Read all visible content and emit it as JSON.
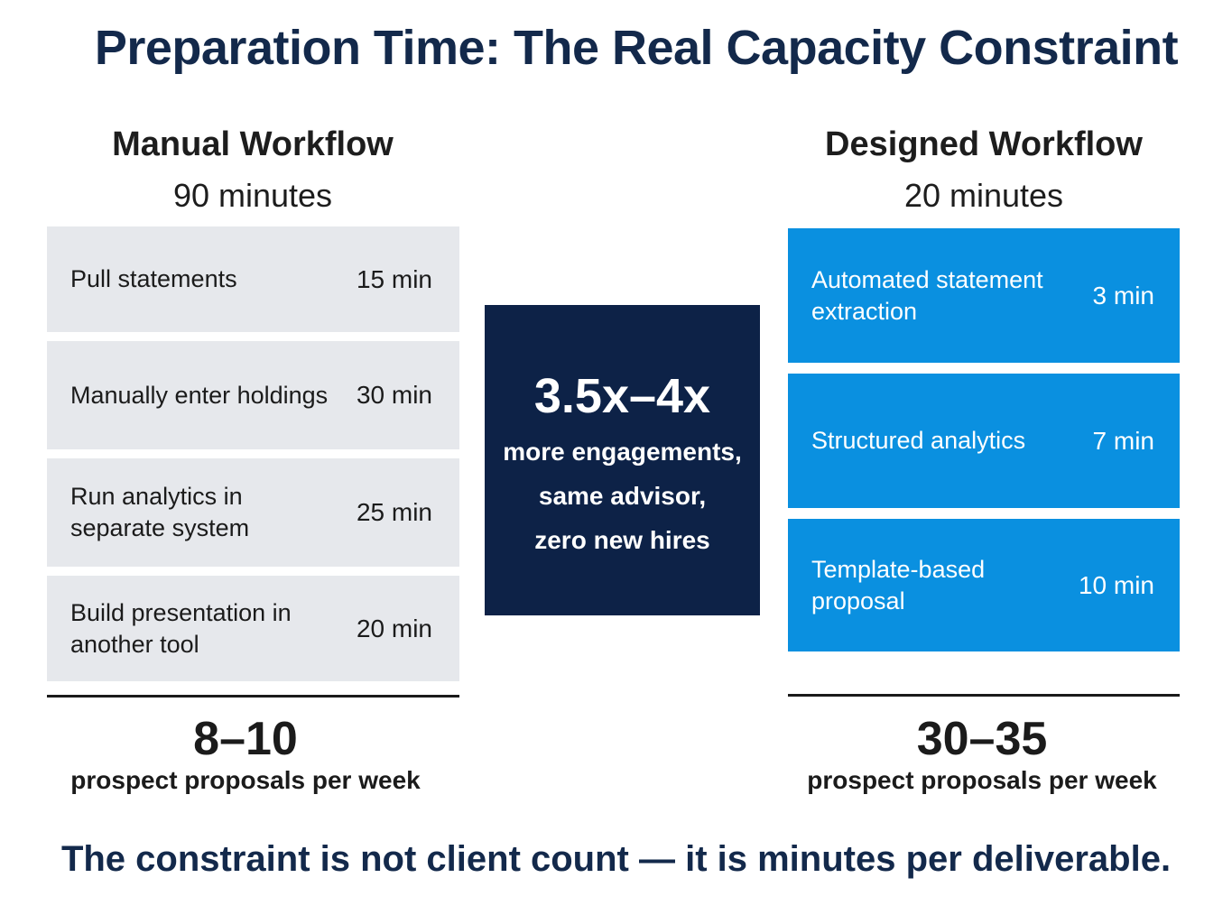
{
  "title": "Preparation Time: The Real Capacity Constraint",
  "manual": {
    "name": "Manual Workflow",
    "total": "90 minutes",
    "steps": [
      {
        "label": "Pull statements",
        "minutes": "15 min"
      },
      {
        "label": "Manually enter holdings",
        "minutes": "30 min"
      },
      {
        "label": "Run analytics in separate system",
        "minutes": "25 min"
      },
      {
        "label": "Build presentation in another tool",
        "minutes": "20 min"
      }
    ],
    "result_value": "8–10",
    "result_label": "prospect proposals per week"
  },
  "designed": {
    "name": "Designed Workflow",
    "total": "20 minutes",
    "steps": [
      {
        "label": "Automated statement extraction",
        "minutes": "3 min"
      },
      {
        "label": "Structured analytics",
        "minutes": "7 min"
      },
      {
        "label": "Template-based proposal",
        "minutes": "10 min"
      }
    ],
    "result_value": "30–35",
    "result_label": "prospect proposals per week"
  },
  "callout": {
    "multiplier": "3.5x–4x",
    "line1": "more engagements,",
    "line2": "same advisor,",
    "line3": "zero new hires"
  },
  "footer": "The constraint is not client count — it is minutes per deliverable.",
  "colors": {
    "title": "#13294b",
    "manual_box": "#e6e8ec",
    "designed_box": "#0a90e0",
    "callout_box": "#0d2247"
  }
}
